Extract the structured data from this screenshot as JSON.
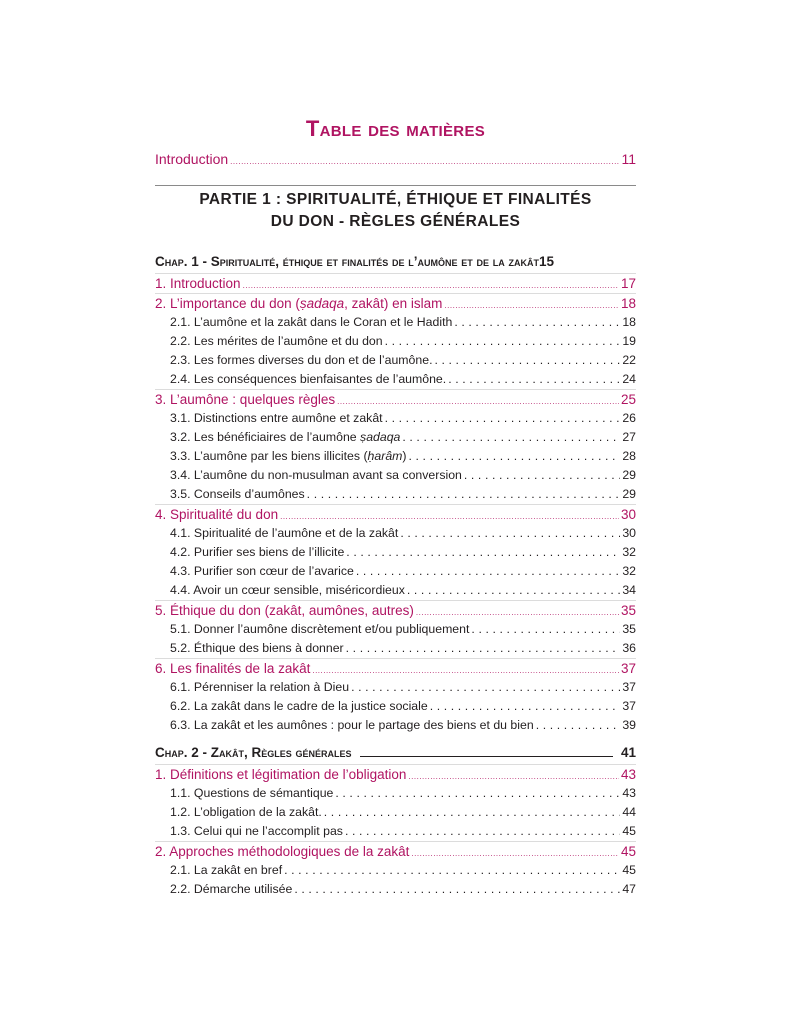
{
  "title": "Table des matières",
  "introduction": {
    "label": "Introduction",
    "page": "11"
  },
  "partie": {
    "line1": "PARTIE 1 : SPIRITUALITÉ, ÉTHIQUE ET FINALITÉS",
    "line2": "DU DON - RÈGLES GÉNÉRALES"
  },
  "chapters": [
    {
      "label": "Chap. 1 - Spiritualité, éthique et finalités de l’aumône et de la zakât",
      "page": "15",
      "entries": [
        {
          "level": "section",
          "pre": "1. Introduction",
          "em": "",
          "post": "",
          "page": "17"
        },
        {
          "level": "section",
          "pre": "2. L’importance du don (",
          "em": "ṣadaqa",
          "post": ", zakât) en islam",
          "page": "18"
        },
        {
          "level": "sub",
          "pre": "2.1. L’aumône et la zakât dans le Coran et le Hadith",
          "em": "",
          "post": "",
          "page": "18"
        },
        {
          "level": "sub",
          "pre": "2.2. Les mérites de l’aumône et du don",
          "em": "",
          "post": "",
          "page": "19"
        },
        {
          "level": "sub",
          "pre": "2.3. Les formes diverses du don et de l’aumône.",
          "em": "",
          "post": "",
          "page": "22"
        },
        {
          "level": "sub",
          "pre": "2.4. Les conséquences bienfaisantes de l’aumône.",
          "em": "",
          "post": "",
          "page": "24"
        },
        {
          "level": "section",
          "pre": "3. L’aumône : quelques règles",
          "em": "",
          "post": "",
          "page": "25"
        },
        {
          "level": "sub",
          "pre": "3.1. Distinctions entre aumône et zakât",
          "em": "",
          "post": "",
          "page": "26"
        },
        {
          "level": "sub",
          "pre": "3.2. Les bénéficiaires de l’aumône ",
          "em": "ṣadaqa",
          "post": "",
          "page": "27"
        },
        {
          "level": "sub",
          "pre": "3.3. L’aumône par les biens illicites (",
          "em": "ḥarâm",
          "post": ")",
          "page": "28"
        },
        {
          "level": "sub",
          "pre": "3.4. L’aumône du non-musulman avant sa conversion",
          "em": "",
          "post": "",
          "page": "29"
        },
        {
          "level": "sub",
          "pre": "3.5. Conseils d’aumônes",
          "em": "",
          "post": "",
          "page": "29"
        },
        {
          "level": "section",
          "pre": "4. Spiritualité du don",
          "em": "",
          "post": "",
          "page": "30"
        },
        {
          "level": "sub",
          "pre": "4.1. Spiritualité de l’aumône et de la zakât",
          "em": "",
          "post": "",
          "page": "30"
        },
        {
          "level": "sub",
          "pre": "4.2. Purifier ses biens de l’illicite",
          "em": "",
          "post": "",
          "page": "32"
        },
        {
          "level": "sub",
          "pre": "4.3. Purifier son cœur de l’avarice",
          "em": "",
          "post": "",
          "page": "32"
        },
        {
          "level": "sub",
          "pre": "4.4. Avoir un cœur sensible, miséricordieux",
          "em": "",
          "post": "",
          "page": "34"
        },
        {
          "level": "section",
          "pre": "5. Éthique du don (zakât, aumônes, autres)",
          "em": "",
          "post": "",
          "page": "35"
        },
        {
          "level": "sub",
          "pre": "5.1. Donner l’aumône discrètement et/ou publiquement",
          "em": "",
          "post": "",
          "page": "35"
        },
        {
          "level": "sub",
          "pre": "5.2. Éthique des biens à donner",
          "em": "",
          "post": "",
          "page": "36"
        },
        {
          "level": "section",
          "pre": "6. Les finalités de la zakât",
          "em": "",
          "post": "",
          "page": "37"
        },
        {
          "level": "sub",
          "pre": "6.1. Pérenniser la relation à Dieu",
          "em": "",
          "post": "",
          "page": "37"
        },
        {
          "level": "sub",
          "pre": "6.2. La zakât dans le cadre de la justice sociale",
          "em": "",
          "post": "",
          "page": "37"
        },
        {
          "level": "sub",
          "pre": "6.3. La zakât et les aumônes : pour le partage des biens et du bien",
          "em": "",
          "post": "",
          "page": "39"
        }
      ]
    },
    {
      "label": "Chap. 2 - Zakât, Règles générales",
      "page": "41",
      "entries": [
        {
          "level": "section",
          "pre": "1. Définitions et légitimation de l’obligation",
          "em": "",
          "post": "",
          "page": "43"
        },
        {
          "level": "sub",
          "pre": "1.1. Questions de sémantique",
          "em": "",
          "post": "",
          "page": "43"
        },
        {
          "level": "sub",
          "pre": "1.2. L’obligation de la zakât.",
          "em": "",
          "post": "",
          "page": "44"
        },
        {
          "level": "sub",
          "pre": "1.3. Celui qui ne l’accomplit pas",
          "em": "",
          "post": "",
          "page": "45"
        },
        {
          "level": "section",
          "pre": "2. Approches méthodologiques de la zakât",
          "em": "",
          "post": "",
          "page": "45"
        },
        {
          "level": "sub",
          "pre": "2.1. La zakât en bref",
          "em": "",
          "post": "",
          "page": "45"
        },
        {
          "level": "sub",
          "pre": "2.2. Démarche utilisée",
          "em": "",
          "post": "",
          "page": "47"
        }
      ]
    }
  ],
  "colors": {
    "accent": "#b01462",
    "text": "#231f20"
  }
}
